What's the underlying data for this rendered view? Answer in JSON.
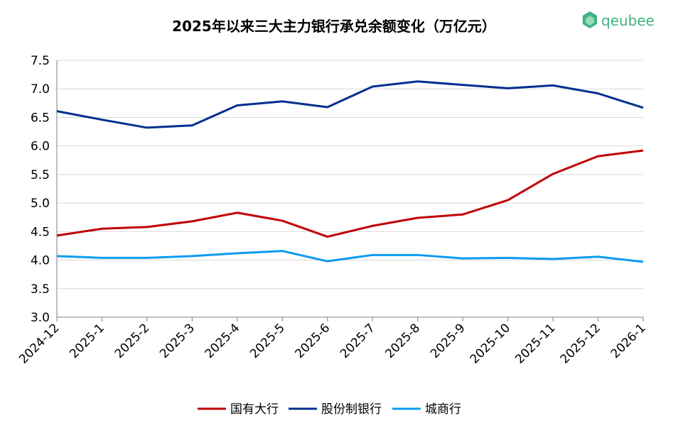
{
  "logo": "qeubee",
  "chart_data": {
    "type": "line",
    "title": "2025年以来三大主力银行承兑余额变化（万亿元）",
    "categories": [
      "2024-12",
      "2025-1",
      "2025-2",
      "2025-3",
      "2025-4",
      "2025-5",
      "2025-6",
      "2025-7",
      "2025-8",
      "2025-9",
      "2025-10",
      "2025-11",
      "2025-12",
      "2026-1"
    ],
    "series": [
      {
        "name": "国有大行",
        "color": "#c00000",
        "values": [
          4.43,
          4.55,
          4.58,
          4.68,
          4.83,
          4.69,
          4.41,
          4.6,
          4.74,
          4.8,
          5.05,
          5.51,
          5.82,
          5.92
        ]
      },
      {
        "name": "股份制银行",
        "color": "#002f8e",
        "values": [
          6.61,
          6.46,
          6.32,
          6.36,
          6.71,
          6.78,
          6.68,
          7.04,
          7.13,
          7.07,
          7.01,
          7.06,
          6.92,
          6.67
        ]
      },
      {
        "name": "城商行",
        "color": "#0c9cf0",
        "values": [
          4.07,
          4.04,
          4.04,
          4.07,
          4.12,
          4.16,
          3.98,
          4.09,
          4.09,
          4.03,
          4.04,
          4.02,
          4.06,
          3.97
        ]
      }
    ],
    "ylim": [
      3.0,
      7.5
    ],
    "yticks": [
      {
        "value": 3.0,
        "label": "3.0"
      },
      3.5,
      {
        "value": 4.0,
        "label": "4.0"
      },
      4.5,
      {
        "value": 5.0,
        "label": "5.0"
      },
      5.5,
      {
        "value": 6.0,
        "label": "6.0"
      },
      6.5,
      {
        "value": 7.0,
        "label": "7.0"
      },
      7.5
    ],
    "grid": true,
    "legend": "bottom"
  }
}
